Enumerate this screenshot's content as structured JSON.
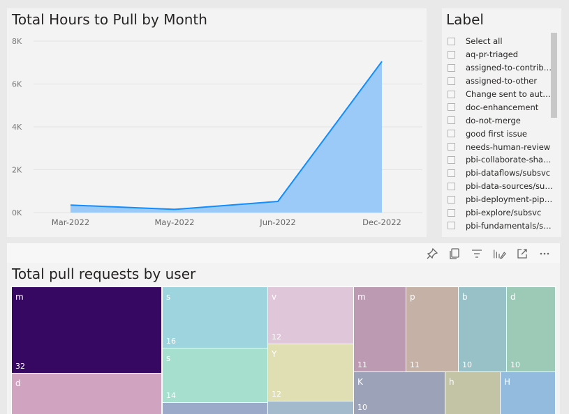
{
  "line_chart": {
    "title": "Total Hours to Pull by Month",
    "color": "#118dff",
    "fill_color": "#9ccaf8"
  },
  "chart_data": {
    "type": "area",
    "categories": [
      "Mar-2022",
      "May-2022",
      "Jun-2022",
      "Dec-2022"
    ],
    "values": [
      350,
      150,
      520,
      7050
    ],
    "ylim": [
      0,
      8000
    ],
    "yticks": [
      "0K",
      "2K",
      "4K",
      "6K",
      "8K"
    ],
    "grid": true
  },
  "slicer": {
    "title": "Label",
    "items": [
      "Select all",
      "aq-pr-triaged",
      "assigned-to-contribu...",
      "assigned-to-other",
      "Change sent to author",
      "doc-enhancement",
      "do-not-merge",
      "good first issue",
      "needs-human-review",
      "pbi-collaborate-share...",
      "pbi-dataflows/subsvc",
      "pbi-data-sources/sub...",
      "pbi-deployment-pipe...",
      "pbi-explore/subsvc",
      "pbi-fundamentals/su..."
    ]
  },
  "toolbar": {
    "icons": [
      "pin-icon",
      "copy-icon",
      "filter-icon",
      "format-icon",
      "focus-mode-icon",
      "more-options-icon"
    ]
  },
  "treemap": {
    "title": "Total pull requests by user",
    "tiles": [
      {
        "name": "m",
        "value": "32",
        "color": "#360862"
      },
      {
        "name": "d",
        "value": "",
        "color": "#d0a4c0"
      },
      {
        "name": "s",
        "value": "16",
        "color": "#9ed4de"
      },
      {
        "name": "s",
        "value": "14",
        "color": "#a6dfcd"
      },
      {
        "name": "",
        "value": "",
        "color": "#9aaac8"
      },
      {
        "name": "v",
        "value": "12",
        "color": "#e0c6d9"
      },
      {
        "name": "Y",
        "value": "12",
        "color": "#dfdfb3"
      },
      {
        "name": "",
        "value": "",
        "color": "#a3b9cc"
      },
      {
        "name": "m",
        "value": "11",
        "color": "#bb9ab2"
      },
      {
        "name": "p",
        "value": "11",
        "color": "#c6b1a6"
      },
      {
        "name": "b",
        "value": "10",
        "color": "#98c1c7"
      },
      {
        "name": "d",
        "value": "10",
        "color": "#9ccab7"
      },
      {
        "name": "K",
        "value": "10",
        "color": "#9ca2b8"
      },
      {
        "name": "h",
        "value": "",
        "color": "#c3c3a6"
      },
      {
        "name": "H",
        "value": "",
        "color": "#93bbdd"
      }
    ]
  }
}
